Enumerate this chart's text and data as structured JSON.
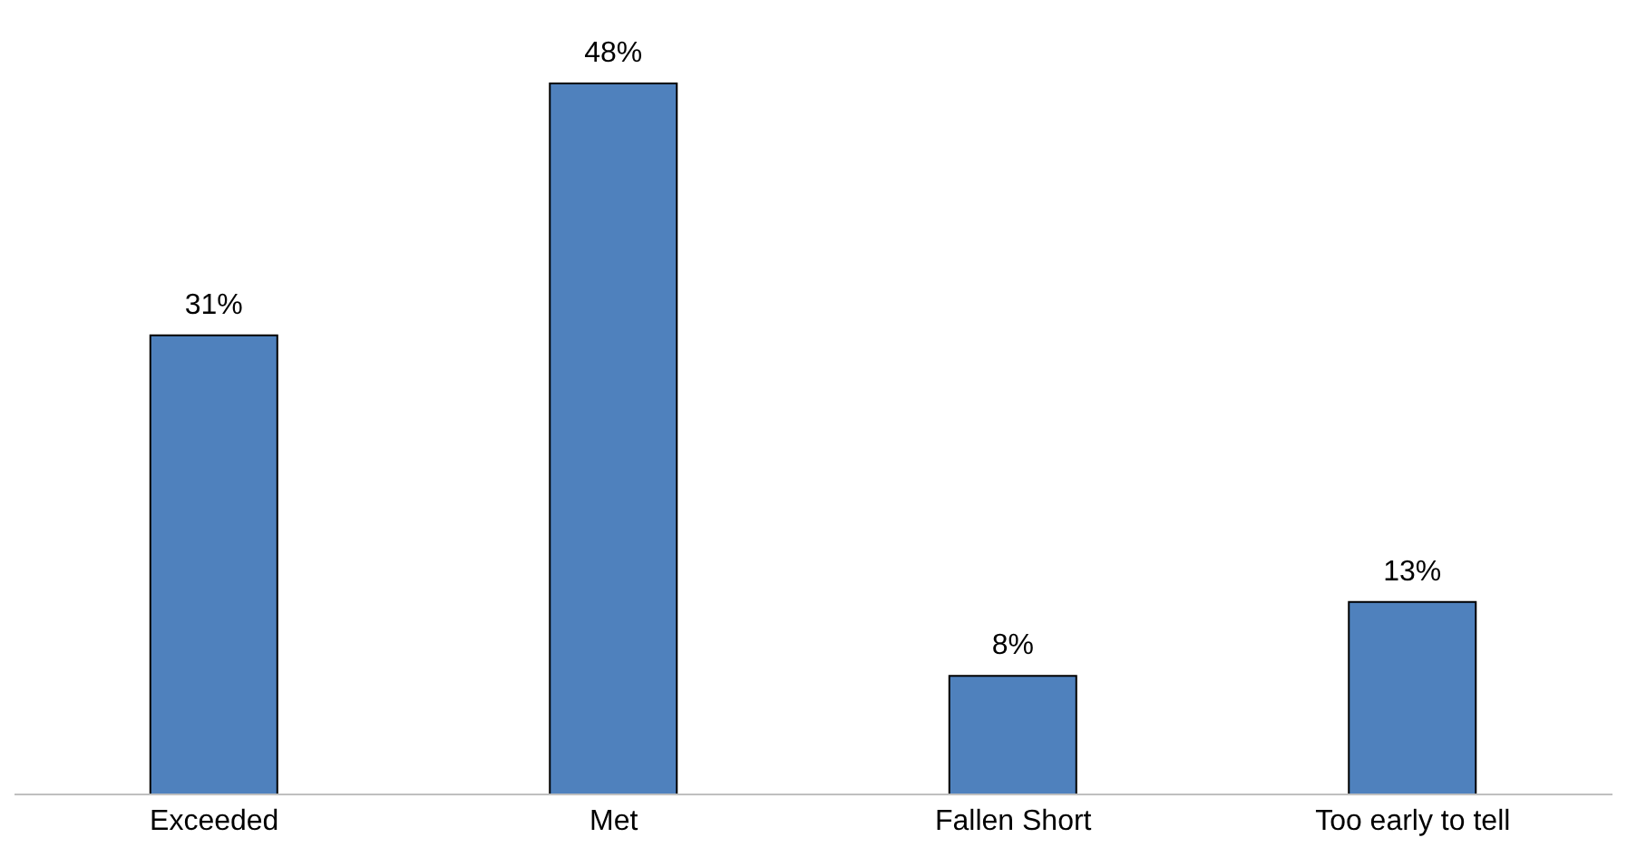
{
  "chart_data": {
    "type": "bar",
    "categories": [
      "Exceeded",
      "Met",
      "Fallen Short",
      "Too early to tell"
    ],
    "values": [
      31,
      48,
      8,
      13
    ],
    "color": "#4f81bd",
    "value_labels": [
      "31%",
      "48%",
      "8%",
      "13%"
    ],
    "grid": false
  }
}
